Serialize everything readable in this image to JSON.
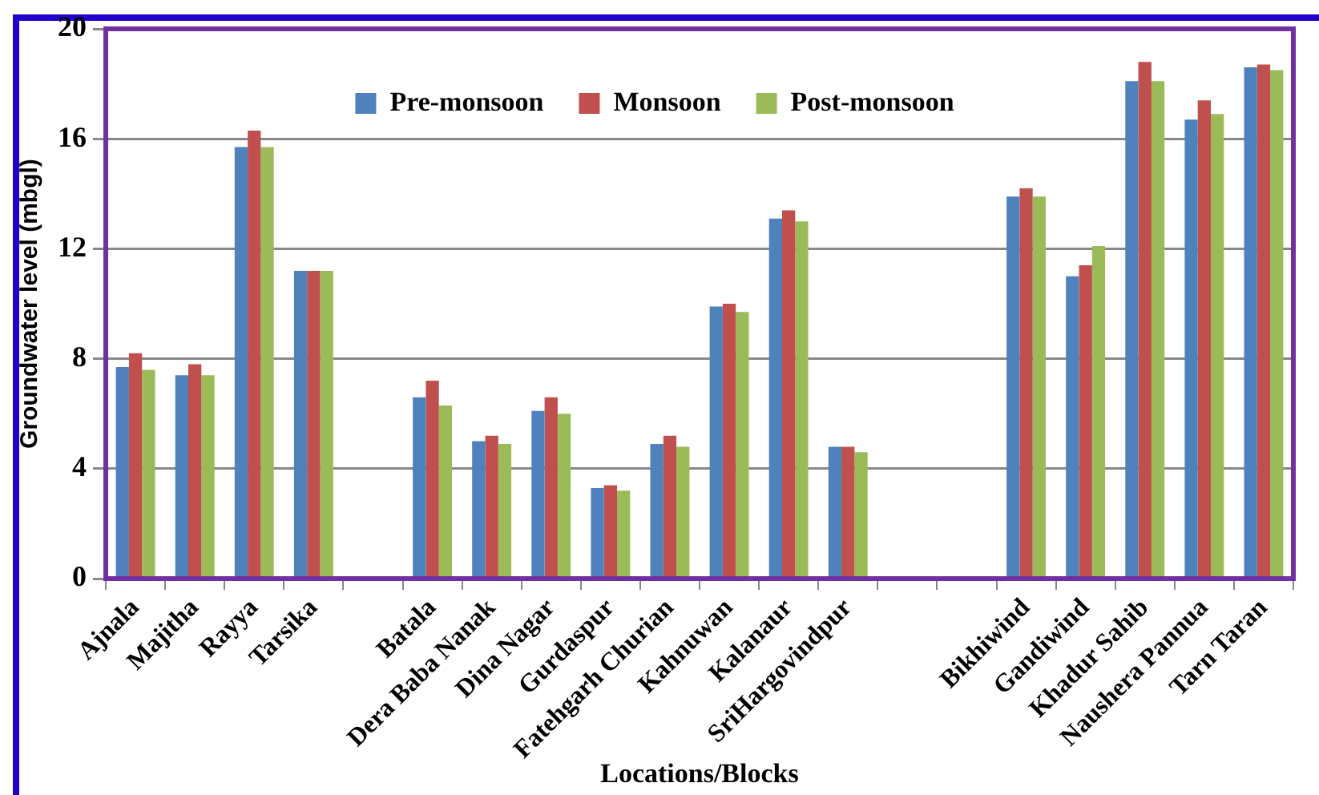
{
  "chart_data": {
    "type": "bar",
    "xlabel": "Locations/Blocks",
    "ylabel": "Groundwater level (mbgl)",
    "categories": [
      "Ajnala",
      "Majitha",
      "Rayya",
      "Tarsika",
      null,
      "Batala",
      "Dera Baba Nanak",
      "Dina Nagar",
      "Gurdaspur",
      "Fatehgarh Churian",
      "Kahnuwan",
      "Kalanaur",
      "SriHargovindpur",
      null,
      null,
      "Bikhiwind",
      "Gandiwind",
      "Khadur Sahib",
      "Naushera Pannua",
      "Tarn Taran"
    ],
    "series": [
      {
        "name": "Pre-monsoon",
        "color": "#4f81bd",
        "values": [
          7.7,
          7.4,
          15.7,
          11.2,
          null,
          6.6,
          5.0,
          6.1,
          3.3,
          4.9,
          9.9,
          13.1,
          4.8,
          null,
          null,
          13.9,
          11.0,
          18.1,
          16.7,
          18.6
        ]
      },
      {
        "name": "Monsoon",
        "color": "#c0504d",
        "values": [
          8.2,
          7.8,
          16.3,
          11.2,
          null,
          7.2,
          5.2,
          6.6,
          3.4,
          5.2,
          10.0,
          13.4,
          4.8,
          null,
          null,
          14.2,
          11.4,
          18.8,
          17.4,
          18.7
        ]
      },
      {
        "name": "Post-monsoon",
        "color": "#9bbb59",
        "values": [
          7.6,
          7.4,
          15.7,
          11.2,
          null,
          6.3,
          4.9,
          6.0,
          3.2,
          4.8,
          9.7,
          13.0,
          4.6,
          null,
          null,
          13.9,
          12.1,
          18.1,
          16.9,
          18.5
        ]
      }
    ],
    "ylim": [
      0,
      20
    ],
    "yticks": [
      0,
      4,
      8,
      12,
      16,
      20
    ],
    "grid": "y",
    "legend": "top"
  }
}
